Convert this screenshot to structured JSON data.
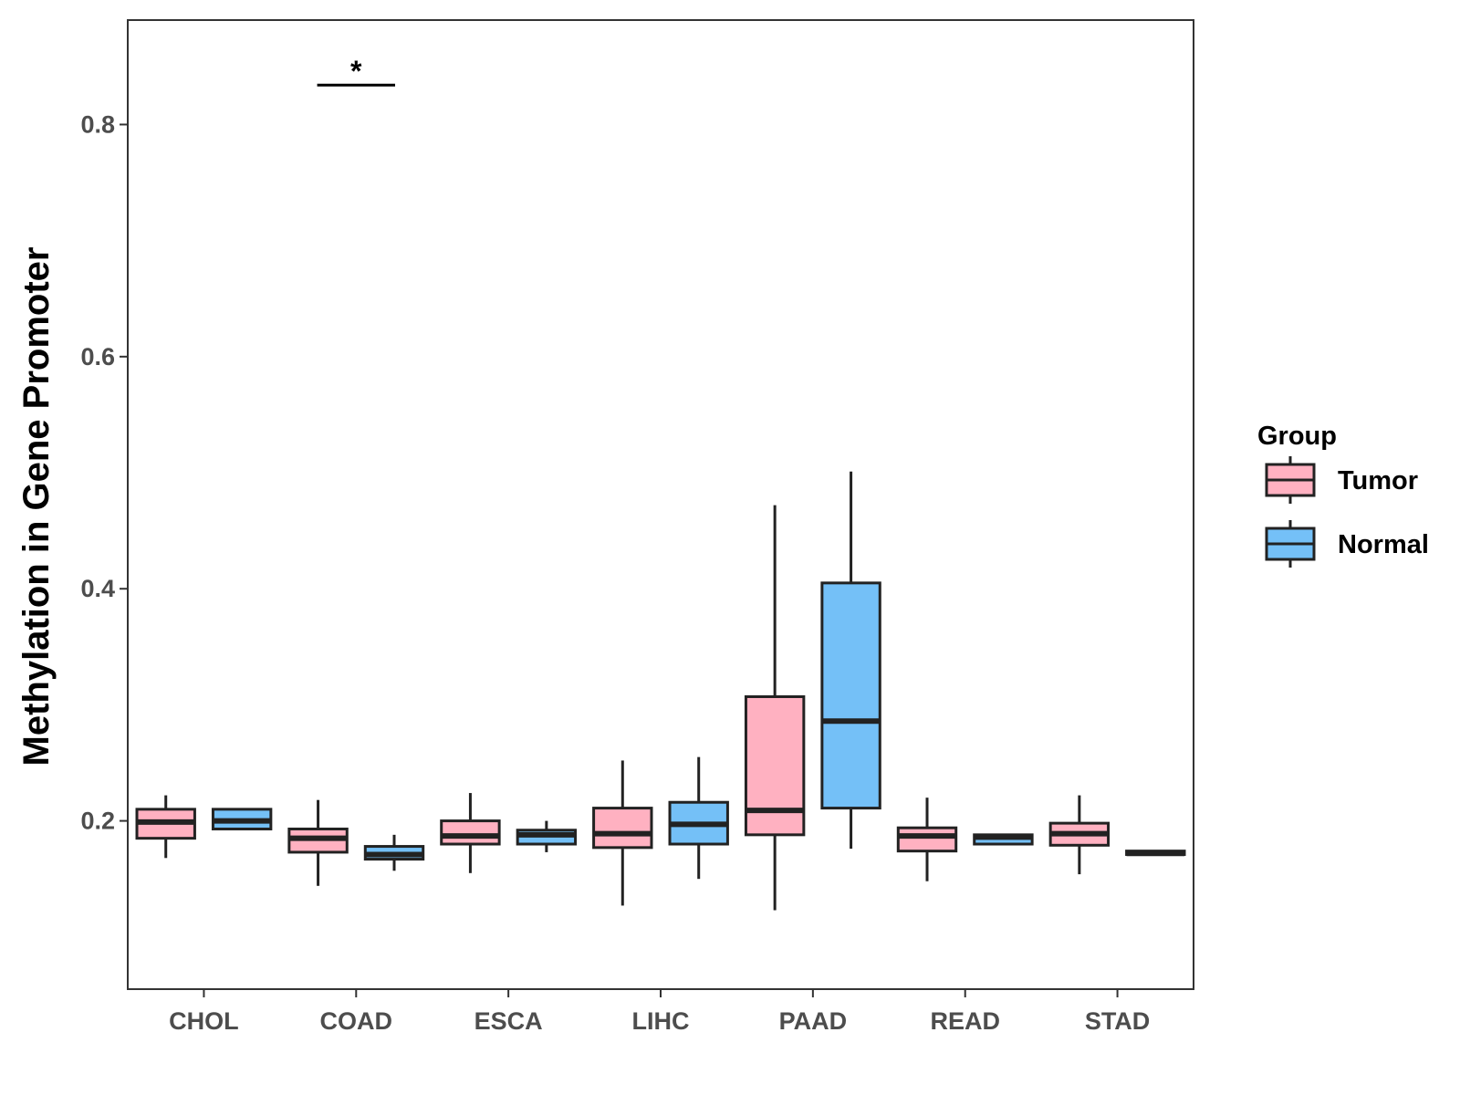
{
  "chart_data": {
    "type": "box",
    "title": "",
    "xlabel": "",
    "ylabel": "Methylation in Gene Promoter",
    "ylim": [
      0.055,
      0.89
    ],
    "yticks": [
      0.2,
      0.4,
      0.6,
      0.8
    ],
    "ytick_labels": [
      "0.2",
      "0.4",
      "0.6",
      "0.8"
    ],
    "categories": [
      "CHOL",
      "COAD",
      "ESCA",
      "LIHC",
      "PAAD",
      "READ",
      "STAD"
    ],
    "legend": {
      "title": "Group",
      "position": "right",
      "entries": [
        "Tumor",
        "Normal"
      ]
    },
    "series": [
      {
        "name": "Tumor",
        "color": "#FFB1C1",
        "boxes": [
          {
            "category": "CHOL",
            "min": 0.168,
            "q1": 0.185,
            "median": 0.199,
            "q3": 0.21,
            "max": 0.222
          },
          {
            "category": "COAD",
            "min": 0.144,
            "q1": 0.173,
            "median": 0.185,
            "q3": 0.193,
            "max": 0.218
          },
          {
            "category": "ESCA",
            "min": 0.155,
            "q1": 0.18,
            "median": 0.187,
            "q3": 0.2,
            "max": 0.224
          },
          {
            "category": "LIHC",
            "min": 0.127,
            "q1": 0.177,
            "median": 0.189,
            "q3": 0.211,
            "max": 0.252
          },
          {
            "category": "PAAD",
            "min": 0.123,
            "q1": 0.188,
            "median": 0.209,
            "q3": 0.307,
            "max": 0.472
          },
          {
            "category": "READ",
            "min": 0.148,
            "q1": 0.174,
            "median": 0.187,
            "q3": 0.194,
            "max": 0.22
          },
          {
            "category": "STAD",
            "min": 0.154,
            "q1": 0.179,
            "median": 0.189,
            "q3": 0.198,
            "max": 0.222
          }
        ]
      },
      {
        "name": "Normal",
        "color": "#74C0F7",
        "boxes": [
          {
            "category": "CHOL",
            "min": 0.193,
            "q1": 0.193,
            "median": 0.2,
            "q3": 0.21,
            "max": 0.21
          },
          {
            "category": "COAD",
            "min": 0.157,
            "q1": 0.167,
            "median": 0.171,
            "q3": 0.178,
            "max": 0.188
          },
          {
            "category": "ESCA",
            "min": 0.173,
            "q1": 0.18,
            "median": 0.188,
            "q3": 0.192,
            "max": 0.2
          },
          {
            "category": "LIHC",
            "min": 0.15,
            "q1": 0.18,
            "median": 0.197,
            "q3": 0.216,
            "max": 0.255
          },
          {
            "category": "PAAD",
            "min": 0.176,
            "q1": 0.211,
            "median": 0.286,
            "q3": 0.405,
            "max": 0.501
          },
          {
            "category": "READ",
            "min": 0.18,
            "q1": 0.18,
            "median": 0.186,
            "q3": 0.188,
            "max": 0.188
          },
          {
            "category": "STAD",
            "min": 0.171,
            "q1": 0.171,
            "median": 0.172,
            "q3": 0.174,
            "max": 0.174
          }
        ]
      }
    ],
    "annotations": [
      {
        "category": "COAD",
        "y": 0.834,
        "text": "*"
      }
    ]
  }
}
